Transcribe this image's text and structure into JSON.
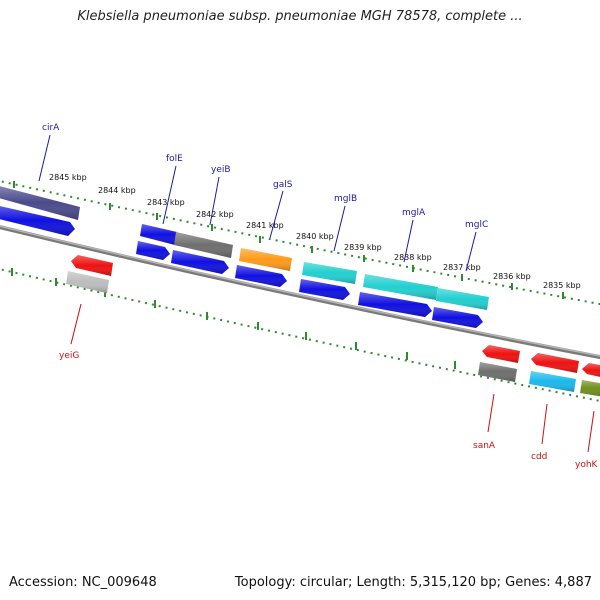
{
  "title": "Klebsiella pneumoniae subsp. pneumoniae MGH 78578, complete ...",
  "footer": {
    "accession": "Accession: NC_009648",
    "summary": "Topology: circular; Length: 5,315,120 bp; Genes: 4,887"
  },
  "colors": {
    "backbone": "#7a7a7a",
    "tick_strand": "#2e8b2e",
    "label_forward": "#1a1aa8",
    "label_reverse": "#cc1111",
    "blue_gene": "#1010e0",
    "gray_gene": "#6e6e6e",
    "orange_gene": "#ff9a1a",
    "cyan_gene": "#22cfd0",
    "navy_gene": "#4a4a8c",
    "red_gene": "#ee1111",
    "lightgray_gene": "#bdbdbd",
    "skyblue_gene": "#1ab8ec",
    "olive_gene": "#6f8f1a"
  },
  "kbp_labels": [
    {
      "text": "2845 kbp"
    },
    {
      "text": "2844 kbp"
    },
    {
      "text": "2843 kbp"
    },
    {
      "text": "2842 kbp"
    },
    {
      "text": "2841 kbp"
    },
    {
      "text": "2840 kbp"
    },
    {
      "text": "2839 kbp"
    },
    {
      "text": "2838 kbp"
    },
    {
      "text": "2837 kbp"
    },
    {
      "text": "2836 kbp"
    },
    {
      "text": "2835 kbp"
    }
  ],
  "gene_labels": [
    {
      "text": "cirA",
      "strand": "forward"
    },
    {
      "text": "folE",
      "strand": "forward"
    },
    {
      "text": "yeiB",
      "strand": "forward"
    },
    {
      "text": "galS",
      "strand": "forward"
    },
    {
      "text": "mglB",
      "strand": "forward"
    },
    {
      "text": "mglA",
      "strand": "forward"
    },
    {
      "text": "mglC",
      "strand": "forward"
    },
    {
      "text": "yeiG",
      "strand": "reverse"
    },
    {
      "text": "sanA",
      "strand": "reverse"
    },
    {
      "text": "cdd",
      "strand": "reverse"
    },
    {
      "text": "yohK",
      "strand": "reverse"
    }
  ]
}
